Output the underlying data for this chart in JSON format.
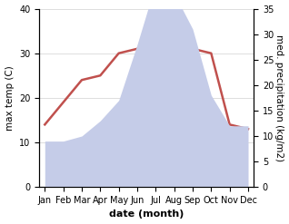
{
  "months": [
    "Jan",
    "Feb",
    "Mar",
    "Apr",
    "May",
    "Jun",
    "Jul",
    "Aug",
    "Sep",
    "Oct",
    "Nov",
    "Dec"
  ],
  "temp": [
    14,
    19,
    24,
    25,
    30,
    31,
    34,
    38,
    31,
    30,
    14,
    13
  ],
  "precip": [
    9,
    9,
    10,
    13,
    17,
    28,
    40,
    38,
    31,
    18,
    12,
    12
  ],
  "temp_color": "#c0504d",
  "precip_fill_color": "#c5cce8",
  "left_ylim": [
    0,
    40
  ],
  "right_ylim": [
    0,
    35
  ],
  "left_yticks": [
    0,
    10,
    20,
    30,
    40
  ],
  "right_yticks": [
    0,
    5,
    10,
    15,
    20,
    25,
    30,
    35
  ],
  "ylabel_left": "max temp (C)",
  "ylabel_right": "med. precipitation (kg/m2)",
  "xlabel": "date (month)",
  "bg_color": "#ffffff",
  "grid_color": "#d0d0d0",
  "temp_linewidth": 1.8,
  "xlabel_fontsize": 8,
  "ylabel_fontsize": 7.5,
  "tick_fontsize": 7
}
